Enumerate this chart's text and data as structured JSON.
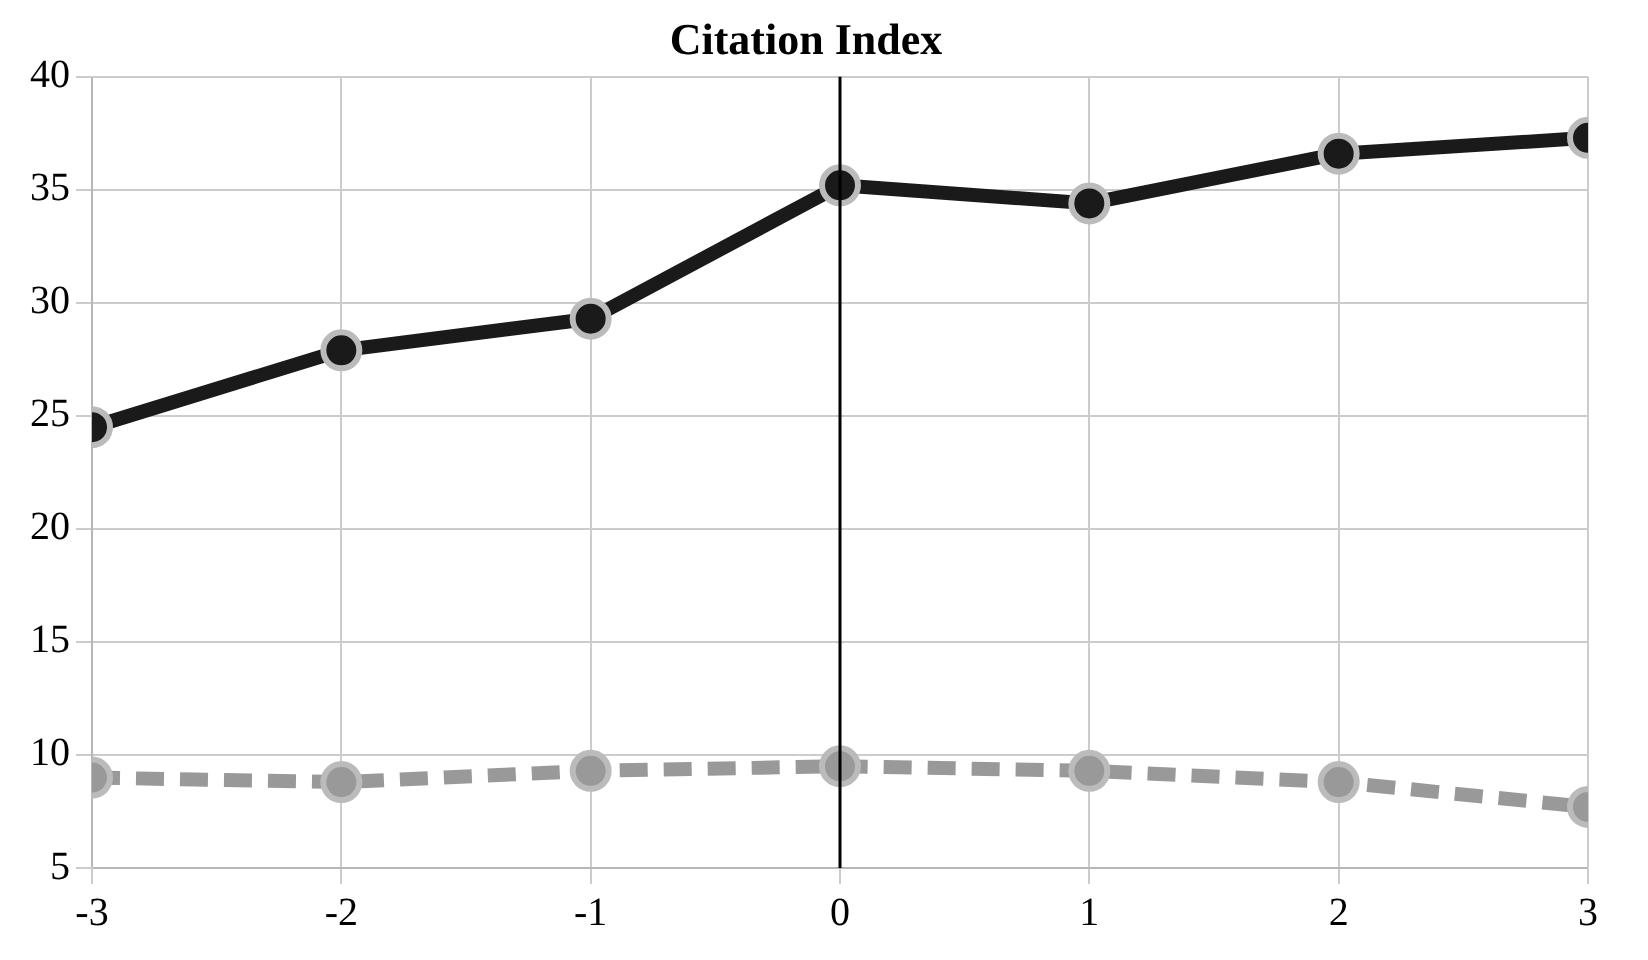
{
  "chart_data": {
    "type": "line",
    "title": "Citation Index",
    "x": [
      -3,
      -2,
      -1,
      0,
      1,
      2,
      3
    ],
    "xlim": [
      -3,
      3
    ],
    "xticks": [
      -3,
      -2,
      -1,
      0,
      1,
      2,
      3
    ],
    "ylim": [
      5,
      40
    ],
    "yticks": [
      5,
      10,
      15,
      20,
      25,
      30,
      35,
      40
    ],
    "grid": true,
    "legend": false,
    "marker": "circle",
    "series": [
      {
        "color": "#1a1a1a",
        "line_style": "solid",
        "values": [
          24.5,
          27.9,
          29.3,
          35.2,
          34.4,
          36.6,
          37.3
        ]
      },
      {
        "color": "#999999",
        "line_style": "dashed",
        "values": [
          9.0,
          8.8,
          9.3,
          9.5,
          9.3,
          8.8,
          7.7
        ]
      }
    ],
    "ref_lines": [
      {
        "axis": "x",
        "value": 0,
        "color": "#000000"
      }
    ]
  }
}
